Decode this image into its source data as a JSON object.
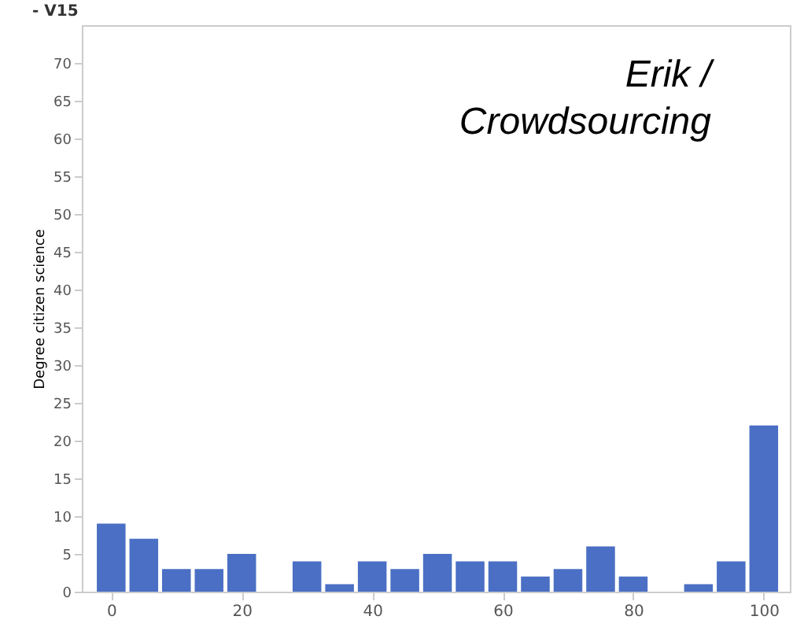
{
  "chart_data": {
    "type": "histogram",
    "title": "- V15",
    "ylabel": "Degree citizen science",
    "annotations": [
      "Erik /\nCrowdsourcing"
    ],
    "bins": [
      -2.5,
      2.5,
      7.5,
      12.5,
      17.5,
      22.5,
      27.5,
      32.5,
      37.5,
      42.5,
      47.5,
      52.5,
      57.5,
      62.5,
      67.5,
      72.5,
      77.5,
      82.5,
      87.5,
      92.5,
      97.5,
      102.5
    ],
    "values": [
      9,
      7,
      3,
      3,
      5,
      0,
      4,
      1,
      4,
      3,
      5,
      4,
      4,
      2,
      3,
      6,
      2,
      0,
      1,
      4,
      22
    ],
    "color": "#4a6fc4",
    "xlim": [
      -4.5,
      104
    ],
    "xticks": [
      0,
      20,
      40,
      60,
      80,
      100
    ],
    "ylim": [
      0,
      75
    ],
    "yticks": [
      0,
      5,
      10,
      15,
      20,
      25,
      30,
      35,
      40,
      45,
      50,
      55,
      60,
      65,
      70
    ],
    "grid": false
  }
}
